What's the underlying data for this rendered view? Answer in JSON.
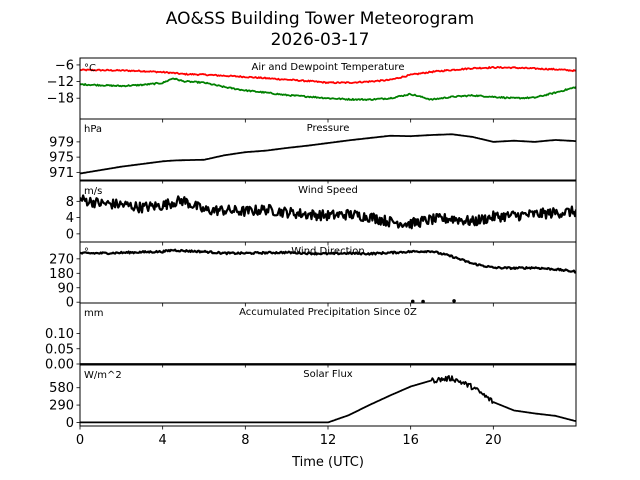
{
  "chart_data": {
    "type": "line",
    "title": "AO&SS Building Tower Meteorogram",
    "subtitle": "2026-03-17",
    "xlabel": "Time (UTC)",
    "xlim": [
      0,
      24
    ],
    "x_ticks": [
      "0",
      "4",
      "8",
      "12",
      "16",
      "20"
    ],
    "x_tick_values": [
      0,
      4,
      8,
      12,
      16,
      20
    ],
    "x_hours": [
      0,
      1,
      2,
      3,
      4,
      4.5,
      5,
      6,
      7,
      8,
      9,
      10,
      11,
      12,
      13,
      14,
      15,
      16,
      17,
      18,
      19,
      20,
      21,
      22,
      23,
      24
    ],
    "panels": [
      {
        "name": "temperature",
        "title": "Air and Dewpoint Temperature",
        "unit": "°C",
        "ylim": [
          -25.5,
          -3.5
        ],
        "y_ticks": [
          "−6",
          "−12",
          "−18"
        ],
        "y_tick_values": [
          -6,
          -12,
          -18
        ],
        "series": [
          {
            "name": "Air Temperature",
            "color": "#ff0000",
            "values": [
              -7.8,
              -7.9,
              -8.0,
              -8.2,
              -8.6,
              -8.9,
              -9.3,
              -9.5,
              -9.9,
              -10.3,
              -10.8,
              -11.3,
              -11.8,
              -12.4,
              -12.4,
              -12.0,
              -11.4,
              -9.6,
              -8.5,
              -7.8,
              -7.2,
              -6.9,
              -7.0,
              -7.3,
              -7.6,
              -8.1
            ]
          },
          {
            "name": "Dewpoint",
            "color": "#008000",
            "values": [
              -13.0,
              -13.3,
              -13.6,
              -13.2,
              -12.5,
              -10.8,
              -11.9,
              -12.4,
              -14.0,
              -15.2,
              -16.0,
              -16.9,
              -17.4,
              -18.0,
              -18.4,
              -18.5,
              -18.0,
              -16.5,
              -18.5,
              -17.5,
              -17.0,
              -17.5,
              -18.0,
              -17.8,
              -16.0,
              -14.0
            ]
          }
        ]
      },
      {
        "name": "pressure",
        "title": "Pressure",
        "unit": "hPa",
        "ylim": [
          969,
          985
        ],
        "y_ticks": [
          "979",
          "975",
          "971"
        ],
        "y_tick_values": [
          979,
          975,
          971
        ],
        "series": [
          {
            "name": "Pressure",
            "color": "#000000",
            "values": [
              970.7,
              971.6,
              972.5,
              973.2,
              973.9,
              974.1,
              974.2,
              974.3,
              975.5,
              976.3,
              976.7,
              977.4,
              978.0,
              978.7,
              979.4,
              980.0,
              980.6,
              980.5,
              980.8,
              981.0,
              980.3,
              979.0,
              979.3,
              979.0,
              979.5,
              979.2
            ]
          }
        ]
      },
      {
        "name": "wind-speed",
        "title": "Wind Speed",
        "unit": "m/s",
        "ylim": [
          -2,
          13
        ],
        "y_ticks": [
          "8",
          "4",
          "0"
        ],
        "y_tick_values": [
          8,
          4,
          0
        ],
        "series": [
          {
            "name": "Wind Speed",
            "color": "#000000",
            "noise": 1.3,
            "values": [
              8.5,
              7.5,
              7.2,
              6.5,
              7.0,
              7.8,
              8.2,
              5.8,
              5.8,
              5.5,
              6.0,
              5.3,
              4.8,
              4.5,
              4.8,
              4.2,
              3.0,
              2.5,
              3.5,
              3.8,
              3.0,
              4.2,
              4.5,
              4.8,
              5.2,
              5.5
            ]
          }
        ]
      },
      {
        "name": "wind-direction",
        "title": "Wind Direction",
        "unit": "°",
        "ylim": [
          -5,
          375
        ],
        "y_ticks": [
          "270",
          "180",
          "90",
          "0"
        ],
        "y_tick_values": [
          270,
          180,
          90,
          0
        ],
        "series": [
          {
            "name": "Wind Direction",
            "color": "#000000",
            "noise": 6,
            "values": [
              305,
              305,
              308,
              312,
              315,
              325,
              320,
              315,
              305,
              305,
              308,
              310,
              305,
              302,
              305,
              302,
              308,
              315,
              318,
              285,
              240,
              215,
              212,
              215,
              205,
              190
            ]
          }
        ],
        "outliers": [
          [
            16.1,
            5
          ],
          [
            16.6,
            4
          ],
          [
            18.1,
            8
          ]
        ]
      },
      {
        "name": "precipitation",
        "title": "Accumulated Precipitation Since 0Z",
        "unit": "mm",
        "ylim": [
          0,
          0.2
        ],
        "y_ticks": [
          "0.10",
          "0.05",
          "0.00"
        ],
        "y_tick_values": [
          0.1,
          0.05,
          0.0
        ],
        "series": [
          {
            "name": "Accumulated Precipitation",
            "color": "#000000",
            "values": [
              0,
              0,
              0,
              0,
              0,
              0,
              0,
              0,
              0,
              0,
              0,
              0,
              0,
              0,
              0,
              0,
              0,
              0,
              0,
              0,
              0,
              0,
              0,
              0,
              0,
              0
            ]
          }
        ]
      },
      {
        "name": "solar-flux",
        "title": "Solar Flux",
        "unit": "W/m^2",
        "ylim": [
          -60,
          960
        ],
        "y_ticks": [
          "580",
          "290",
          "0"
        ],
        "y_tick_values": [
          580,
          290,
          0
        ],
        "series": [
          {
            "name": "Solar Flux",
            "color": "#000000",
            "values": [
              0,
              0,
              0,
              0,
              0,
              0,
              0,
              0,
              0,
              0,
              0,
              0,
              0,
              0,
              120,
              290,
              450,
              600,
              700,
              740,
              590,
              340,
              200,
              150,
              110,
              20
            ]
          }
        ]
      }
    ]
  }
}
